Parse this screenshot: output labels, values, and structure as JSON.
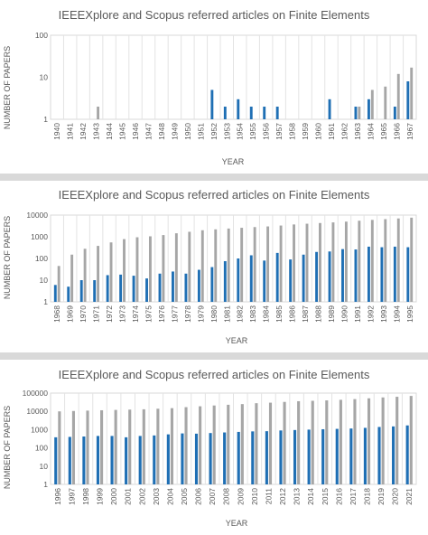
{
  "chart_data": [
    {
      "type": "bar",
      "title": "IEEEXplore and Scopus referred articles on Finite Elements",
      "xlabel": "YEAR",
      "ylabel": "NUMBER OF PAPERS",
      "yscale": "log",
      "ylim": [
        1,
        100
      ],
      "yticks": [
        "1",
        "10",
        "100"
      ],
      "grid": "vertical",
      "colors": {
        "blue": "#1f6fb4",
        "gray": "#a6a6a6"
      },
      "categories": [
        "1940",
        "1941",
        "1942",
        "1943",
        "1944",
        "1945",
        "1946",
        "1947",
        "1948",
        "1949",
        "1950",
        "1951",
        "1952",
        "1953",
        "1954",
        "1955",
        "1956",
        "1957",
        "1958",
        "1959",
        "1960",
        "1961",
        "1962",
        "1963",
        "1964",
        "1965",
        "1966",
        "1967"
      ],
      "series": [
        {
          "color": "#1f6fb4",
          "values": [
            null,
            null,
            null,
            null,
            null,
            null,
            null,
            null,
            null,
            null,
            null,
            null,
            5,
            2,
            3,
            2,
            2,
            2,
            null,
            null,
            null,
            3,
            null,
            2,
            3,
            null,
            2,
            8
          ]
        },
        {
          "color": "#a6a6a6",
          "values": [
            null,
            null,
            null,
            2,
            null,
            null,
            null,
            null,
            null,
            null,
            null,
            null,
            null,
            null,
            null,
            null,
            null,
            null,
            null,
            null,
            null,
            null,
            null,
            2,
            5,
            6,
            12,
            17
          ]
        }
      ]
    },
    {
      "type": "bar",
      "title": "IEEEXplore and Scopus referred articles on Finite Elements",
      "xlabel": "YEAR",
      "ylabel": "NUMBER OF PAPERS",
      "yscale": "log",
      "ylim": [
        1,
        10000
      ],
      "yticks": [
        "1",
        "10",
        "100",
        "1000",
        "10000"
      ],
      "grid": "vertical",
      "colors": {
        "blue": "#1f6fb4",
        "gray": "#a6a6a6"
      },
      "categories": [
        "1968",
        "1969",
        "1970",
        "1971",
        "1972",
        "1973",
        "1974",
        "1975",
        "1976",
        "1977",
        "1978",
        "1979",
        "1980",
        "1981",
        "1982",
        "1983",
        "1984",
        "1985",
        "1986",
        "1987",
        "1988",
        "1989",
        "1990",
        "1991",
        "1992",
        "1993",
        "1994",
        "1995"
      ],
      "series": [
        {
          "color": "#1f6fb4",
          "values": [
            6,
            5,
            10,
            10,
            17,
            18,
            16,
            12,
            20,
            25,
            20,
            30,
            40,
            75,
            100,
            140,
            80,
            180,
            90,
            150,
            200,
            210,
            270,
            260,
            350,
            330,
            350,
            330
          ]
        },
        {
          "color": "#a6a6a6",
          "values": [
            45,
            150,
            280,
            380,
            550,
            780,
            950,
            1050,
            1200,
            1450,
            1700,
            2000,
            2200,
            2400,
            2600,
            2800,
            3000,
            3300,
            3700,
            4000,
            4300,
            4600,
            5000,
            5500,
            6000,
            6500,
            7000,
            7600
          ]
        }
      ]
    },
    {
      "type": "bar",
      "title": "IEEEXplore and Scopus referred articles on Finite Elements",
      "xlabel": "YEAR",
      "ylabel": "NUMBER OF PAPERS",
      "yscale": "log",
      "ylim": [
        1,
        100000
      ],
      "yticks": [
        "1",
        "10",
        "100",
        "1000",
        "10000",
        "100000"
      ],
      "grid": "vertical",
      "colors": {
        "blue": "#1f6fb4",
        "gray": "#a6a6a6"
      },
      "categories": [
        "1996",
        "1997",
        "1998",
        "1999",
        "2000",
        "2001",
        "2002",
        "2003",
        "2004",
        "2005",
        "2006",
        "2007",
        "2008",
        "2009",
        "2010",
        "2011",
        "2012",
        "2013",
        "2014",
        "2015",
        "2016",
        "2017",
        "2018",
        "2019",
        "2020",
        "2021"
      ],
      "series": [
        {
          "color": "#1f6fb4",
          "values": [
            380,
            400,
            420,
            450,
            450,
            380,
            450,
            480,
            550,
            620,
            600,
            650,
            700,
            750,
            800,
            820,
            900,
            950,
            1000,
            1050,
            1100,
            1150,
            1250,
            1400,
            1500,
            1700
          ]
        },
        {
          "color": "#a6a6a6",
          "values": [
            10000,
            10500,
            11000,
            11500,
            12000,
            12500,
            13000,
            14000,
            15000,
            17000,
            19000,
            21000,
            23000,
            25000,
            28000,
            30000,
            33000,
            36000,
            38000,
            40000,
            43000,
            47000,
            52000,
            58000,
            63000,
            70000
          ]
        }
      ]
    }
  ]
}
